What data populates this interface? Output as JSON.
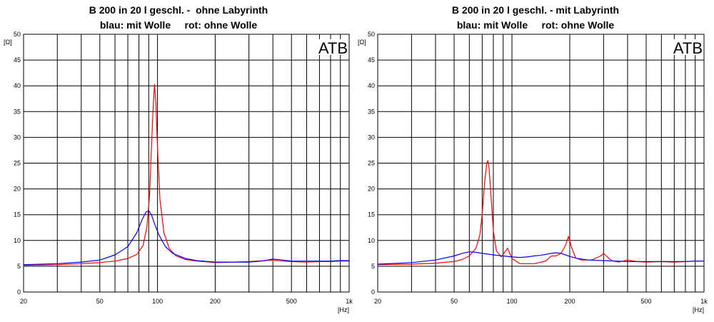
{
  "chart_data": [
    {
      "type": "line",
      "title": "B 200 in 20 l geschl. -  ohne Labyrinth",
      "subtitle": "blau: mit Wolle     rot: ohne Wolle",
      "ylabel": "[Ω]",
      "xlabel": "[Hz]",
      "watermark": "ATB",
      "x_scale": "log",
      "xlim": [
        20,
        1000
      ],
      "ylim": [
        0,
        50
      ],
      "grid": true,
      "y_ticks": [
        "0",
        "5",
        "10",
        "15",
        "20",
        "25",
        "30",
        "35",
        "40",
        "45",
        "50"
      ],
      "x_ticks": [
        {
          "value": 20,
          "label": "20"
        },
        {
          "value": 50,
          "label": "50"
        },
        {
          "value": 100,
          "label": "100"
        },
        {
          "value": 200,
          "label": "200"
        },
        {
          "value": 500,
          "label": "500"
        },
        {
          "value": 1000,
          "label": "1k"
        }
      ],
      "series": [
        {
          "color": "#ff0000",
          "x": [
            20,
            30,
            40,
            50,
            60,
            70,
            78,
            84,
            88,
            91,
            93,
            95,
            96.5,
            98,
            100,
            103,
            108,
            115,
            125,
            140,
            160,
            200,
            250,
            300,
            400,
            450,
            500,
            600,
            700,
            800,
            900,
            1000
          ],
          "y": [
            5.2,
            5.3,
            5.5,
            5.7,
            6.0,
            6.5,
            7.3,
            9.0,
            12.5,
            19.0,
            28.0,
            36.0,
            40.3,
            37.0,
            28.0,
            18.0,
            11.5,
            8.5,
            7.0,
            6.3,
            6.0,
            5.7,
            5.8,
            5.9,
            6.2,
            6.0,
            5.9,
            5.8,
            5.9,
            5.9,
            6.0,
            6.0
          ]
        },
        {
          "color": "#0000ff",
          "x": [
            20,
            30,
            40,
            50,
            60,
            70,
            78,
            83,
            87,
            90,
            93,
            97,
            102,
            110,
            120,
            140,
            160,
            200,
            250,
            300,
            350,
            400,
            450,
            500,
            600,
            700,
            800,
            900,
            1000
          ],
          "y": [
            5.3,
            5.5,
            5.8,
            6.2,
            7.2,
            8.8,
            11.5,
            14.0,
            15.5,
            15.8,
            15.0,
            13.0,
            11.0,
            8.8,
            7.5,
            6.5,
            6.1,
            5.8,
            5.8,
            5.8,
            6.0,
            6.4,
            6.2,
            6.0,
            6.0,
            6.0,
            6.0,
            6.1,
            6.1
          ]
        }
      ]
    },
    {
      "type": "line",
      "title": "B 200 in 20 l geschl. - mit Labyrinth",
      "subtitle": "blau: mit Wolle     rot: ohne Wolle",
      "ylabel": "[Ω]",
      "xlabel": "[Hz]",
      "watermark": "ATB",
      "x_scale": "log",
      "xlim": [
        20,
        1000
      ],
      "ylim": [
        0,
        50
      ],
      "grid": true,
      "y_ticks": [
        "0",
        "5",
        "10",
        "15",
        "20",
        "25",
        "30",
        "35",
        "40",
        "45",
        "50"
      ],
      "x_ticks": [
        {
          "value": 20,
          "label": "20"
        },
        {
          "value": 50,
          "label": "50"
        },
        {
          "value": 100,
          "label": "100"
        },
        {
          "value": 200,
          "label": "200"
        },
        {
          "value": 500,
          "label": "500"
        },
        {
          "value": 1000,
          "label": "1k"
        }
      ],
      "series": [
        {
          "color": "#ff0000",
          "x": [
            20,
            30,
            40,
            50,
            55,
            60,
            65,
            68,
            70,
            72,
            74,
            75,
            76,
            78,
            80,
            83,
            88,
            92,
            95,
            100,
            110,
            130,
            150,
            160,
            170,
            180,
            190,
            197,
            205,
            215,
            230,
            260,
            290,
            300,
            310,
            330,
            360,
            400,
            450,
            500,
            600,
            700,
            800,
            900,
            1000
          ],
          "y": [
            5.3,
            5.4,
            5.6,
            5.9,
            6.3,
            7.0,
            8.5,
            11.0,
            15.0,
            21.0,
            25.0,
            25.5,
            24.0,
            18.0,
            12.0,
            8.0,
            6.8,
            7.8,
            8.5,
            6.5,
            5.5,
            5.5,
            6.0,
            7.0,
            7.0,
            7.5,
            9.0,
            10.8,
            8.5,
            6.6,
            6.2,
            6.2,
            7.0,
            7.5,
            7.0,
            6.1,
            5.8,
            6.2,
            5.9,
            5.8,
            5.9,
            5.8,
            5.9,
            6.0,
            6.0
          ]
        },
        {
          "color": "#0000ff",
          "x": [
            20,
            30,
            40,
            50,
            55,
            60,
            65,
            70,
            80,
            90,
            100,
            110,
            120,
            130,
            140,
            150,
            160,
            170,
            180,
            190,
            200,
            220,
            250,
            300,
            350,
            400,
            450,
            500,
            600,
            700,
            800,
            900,
            1000
          ],
          "y": [
            5.4,
            5.7,
            6.2,
            7.0,
            7.5,
            7.8,
            7.7,
            7.5,
            7.2,
            7.0,
            6.8,
            6.7,
            6.8,
            7.0,
            7.1,
            7.3,
            7.5,
            7.6,
            7.5,
            7.2,
            6.9,
            6.5,
            6.2,
            6.1,
            6.0,
            5.9,
            5.9,
            5.9,
            5.9,
            5.9,
            5.9,
            6.0,
            6.0
          ]
        }
      ]
    }
  ]
}
